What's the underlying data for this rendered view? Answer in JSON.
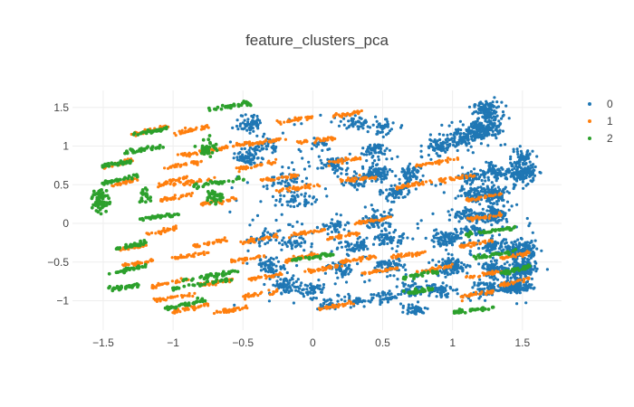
{
  "chart_data": {
    "type": "scatter",
    "title": "feature_clusters_pca",
    "xlabel": "",
    "ylabel": "",
    "xlim": [
      -1.72,
      1.78
    ],
    "ylim": [
      -1.38,
      1.72
    ],
    "x_ticks": [
      -1.5,
      -1,
      -0.5,
      0,
      0.5,
      1,
      1.5
    ],
    "x_tick_labels": [
      "−1.5",
      "−1",
      "−0.5",
      "0",
      "0.5",
      "1",
      "1.5"
    ],
    "y_ticks": [
      -1,
      -0.5,
      0,
      0.5,
      1,
      1.5
    ],
    "y_tick_labels": [
      "−1",
      "−0.5",
      "0",
      "0.5",
      "1",
      "1.5"
    ],
    "grid": true,
    "legend_position": "top-right",
    "series": [
      {
        "name": "0",
        "color": "#1f77b4",
        "marker_size": 1.6,
        "blobs": [
          [
            1.25,
            1.45,
            0.05,
            0.06,
            120
          ],
          [
            1.22,
            1.22,
            0.06,
            0.06,
            160
          ],
          [
            1.05,
            1.1,
            0.06,
            0.06,
            80
          ],
          [
            0.9,
            1.0,
            0.05,
            0.05,
            60
          ],
          [
            1.5,
            0.85,
            0.04,
            0.05,
            60
          ],
          [
            1.5,
            0.65,
            0.05,
            0.06,
            140
          ],
          [
            1.3,
            0.65,
            0.04,
            0.05,
            60
          ],
          [
            1.15,
            0.6,
            0.05,
            0.05,
            60
          ],
          [
            1.3,
            0.38,
            0.05,
            0.05,
            90
          ],
          [
            1.15,
            0.38,
            0.05,
            0.05,
            60
          ],
          [
            1.3,
            0.12,
            0.05,
            0.06,
            120
          ],
          [
            1.1,
            0.1,
            0.05,
            0.05,
            60
          ],
          [
            1.5,
            -0.35,
            0.05,
            0.06,
            140
          ],
          [
            1.3,
            -0.3,
            0.05,
            0.05,
            80
          ],
          [
            1.5,
            -0.6,
            0.05,
            0.06,
            160
          ],
          [
            1.3,
            -0.6,
            0.05,
            0.05,
            80
          ],
          [
            1.45,
            -0.82,
            0.06,
            0.04,
            140
          ],
          [
            1.25,
            -0.85,
            0.05,
            0.05,
            60
          ],
          [
            1.0,
            -0.55,
            0.06,
            0.06,
            90
          ],
          [
            0.95,
            -0.2,
            0.06,
            0.05,
            80
          ],
          [
            0.9,
            -0.85,
            0.05,
            0.05,
            60
          ],
          [
            0.7,
            -0.85,
            0.05,
            0.05,
            50
          ],
          [
            0.72,
            -1.12,
            0.05,
            0.03,
            50
          ],
          [
            0.55,
            -0.55,
            0.05,
            0.05,
            60
          ],
          [
            0.55,
            -0.2,
            0.05,
            0.05,
            60
          ],
          [
            0.45,
            0.05,
            0.05,
            0.05,
            60
          ],
          [
            0.6,
            0.4,
            0.05,
            0.05,
            60
          ],
          [
            0.45,
            0.65,
            0.05,
            0.05,
            90
          ],
          [
            0.7,
            0.65,
            0.04,
            0.05,
            60
          ],
          [
            0.45,
            0.95,
            0.05,
            0.05,
            50
          ],
          [
            0.5,
            1.25,
            0.05,
            0.05,
            40
          ],
          [
            0.3,
            1.3,
            0.06,
            0.05,
            40
          ],
          [
            0.15,
            0.75,
            0.05,
            0.05,
            50
          ],
          [
            0.3,
            0.55,
            0.05,
            0.05,
            40
          ],
          [
            -0.2,
            0.55,
            0.07,
            0.07,
            50
          ],
          [
            -0.1,
            0.3,
            0.06,
            0.05,
            40
          ],
          [
            -0.45,
            0.85,
            0.05,
            0.05,
            60
          ],
          [
            -0.45,
            1.3,
            0.04,
            0.06,
            60
          ],
          [
            -0.35,
            1.0,
            0.05,
            0.05,
            40
          ],
          [
            -0.3,
            -0.55,
            0.05,
            0.05,
            60
          ],
          [
            -0.2,
            -0.8,
            0.05,
            0.06,
            70
          ],
          [
            0.0,
            -0.85,
            0.05,
            0.05,
            50
          ],
          [
            0.2,
            -0.6,
            0.05,
            0.05,
            50
          ],
          [
            0.3,
            -0.3,
            0.06,
            0.05,
            50
          ],
          [
            0.15,
            -0.05,
            0.05,
            0.05,
            40
          ],
          [
            -0.15,
            -0.25,
            0.05,
            0.05,
            40
          ],
          [
            -0.35,
            -0.2,
            0.05,
            0.05,
            30
          ],
          [
            0.1,
            -1.05,
            0.04,
            0.04,
            30
          ],
          [
            0.3,
            -1.0,
            0.05,
            0.04,
            30
          ],
          [
            0.5,
            -0.95,
            0.05,
            0.04,
            40
          ],
          [
            1.15,
            -0.1,
            0.05,
            0.05,
            40
          ],
          [
            0.05,
            1.05,
            0.05,
            0.05,
            20
          ]
        ]
      },
      {
        "name": "1",
        "color": "#ff7f0e",
        "marker_size": 1.6,
        "segments": [
          [
            -1.5,
            0.72,
            -1.3,
            0.82
          ],
          [
            -1.45,
            0.48,
            -1.25,
            0.58
          ],
          [
            -1.1,
            0.5,
            -0.9,
            0.6
          ],
          [
            -1.0,
            0.5,
            -0.7,
            0.58
          ],
          [
            -1.3,
            1.15,
            -1.05,
            1.25
          ],
          [
            -1.0,
            1.15,
            -0.75,
            1.25
          ],
          [
            -0.95,
            0.88,
            -0.7,
            0.95
          ],
          [
            -1.05,
            0.72,
            -0.8,
            0.8
          ],
          [
            -0.7,
            0.95,
            -0.45,
            1.05
          ],
          [
            -0.45,
            1.02,
            -0.2,
            1.1
          ],
          [
            -0.1,
            1.05,
            0.15,
            1.1
          ],
          [
            -0.25,
            1.3,
            0.0,
            1.38
          ],
          [
            0.15,
            1.38,
            0.35,
            1.45
          ],
          [
            -0.55,
            0.7,
            -0.25,
            0.8
          ],
          [
            -0.4,
            0.55,
            -0.1,
            0.62
          ],
          [
            -0.25,
            0.42,
            0.05,
            0.5
          ],
          [
            0.1,
            0.78,
            0.35,
            0.85
          ],
          [
            0.2,
            0.55,
            0.45,
            0.6
          ],
          [
            -1.1,
            0.3,
            -0.85,
            0.38
          ],
          [
            -0.8,
            0.25,
            -0.55,
            0.32
          ],
          [
            -1.2,
            -0.15,
            -0.95,
            -0.05
          ],
          [
            -0.85,
            -0.3,
            -0.6,
            -0.2
          ],
          [
            -0.5,
            -0.25,
            -0.25,
            -0.15
          ],
          [
            -0.15,
            -0.15,
            0.1,
            -0.08
          ],
          [
            0.1,
            -0.2,
            0.35,
            -0.12
          ],
          [
            0.3,
            0.0,
            0.55,
            0.08
          ],
          [
            0.6,
            0.45,
            0.85,
            0.55
          ],
          [
            0.75,
            0.75,
            1.05,
            0.85
          ],
          [
            0.9,
            0.55,
            1.15,
            0.62
          ],
          [
            -1.4,
            -0.35,
            -1.2,
            -0.28
          ],
          [
            -1.35,
            -0.55,
            -1.15,
            -0.48
          ],
          [
            -1.0,
            -0.45,
            -0.75,
            -0.38
          ],
          [
            -0.6,
            -0.5,
            -0.35,
            -0.42
          ],
          [
            -0.2,
            -0.48,
            0.05,
            -0.4
          ],
          [
            0.2,
            -0.5,
            0.45,
            -0.42
          ],
          [
            0.55,
            -0.45,
            0.8,
            -0.38
          ],
          [
            -1.15,
            -0.82,
            -0.9,
            -0.72
          ],
          [
            -0.8,
            -0.8,
            -0.55,
            -0.72
          ],
          [
            -0.45,
            -0.72,
            -0.2,
            -0.65
          ],
          [
            -1.15,
            -1.0,
            -0.85,
            -0.92
          ],
          [
            -1.0,
            -1.15,
            -0.75,
            -1.05
          ],
          [
            -0.7,
            -1.15,
            -0.45,
            -1.08
          ],
          [
            0.05,
            -1.1,
            0.3,
            -1.02
          ],
          [
            -0.05,
            -0.62,
            0.2,
            -0.55
          ],
          [
            0.35,
            -0.65,
            0.6,
            -0.58
          ],
          [
            0.75,
            -0.62,
            1.0,
            -0.55
          ],
          [
            1.05,
            -0.3,
            1.3,
            -0.22
          ],
          [
            1.1,
            -0.7,
            1.35,
            -0.62
          ],
          [
            1.05,
            -0.95,
            1.3,
            -0.88
          ],
          [
            1.35,
            -0.45,
            1.55,
            -0.38
          ],
          [
            1.35,
            -0.8,
            1.55,
            -0.72
          ],
          [
            1.1,
            0.05,
            1.35,
            0.12
          ],
          [
            1.1,
            0.3,
            1.35,
            0.38
          ],
          [
            -0.5,
            -0.95,
            -0.25,
            -0.88
          ]
        ]
      },
      {
        "name": "2",
        "color": "#2ca02c",
        "marker_size": 1.9,
        "segments": [
          [
            -0.75,
            1.48,
            -0.45,
            1.55
          ],
          [
            -1.3,
            1.15,
            -1.05,
            1.22
          ],
          [
            -1.35,
            0.92,
            -1.05,
            1.0
          ],
          [
            -1.5,
            0.75,
            -1.3,
            0.8
          ],
          [
            -1.5,
            0.52,
            -1.25,
            0.62
          ],
          [
            -0.85,
            0.48,
            -0.5,
            0.58
          ],
          [
            -1.25,
            0.05,
            -0.95,
            0.12
          ],
          [
            -1.4,
            -0.32,
            -1.2,
            -0.25
          ],
          [
            -1.45,
            -0.65,
            -1.2,
            -0.55
          ],
          [
            -1.45,
            -0.85,
            -1.25,
            -0.8
          ],
          [
            -1.0,
            -0.85,
            -0.6,
            -0.72
          ],
          [
            -0.95,
            -0.75,
            -0.55,
            -0.62
          ],
          [
            -1.05,
            -1.1,
            -0.75,
            -0.98
          ],
          [
            -0.15,
            -0.48,
            0.15,
            -0.4
          ],
          [
            0.65,
            -0.9,
            0.85,
            -0.85
          ],
          [
            0.65,
            -0.7,
            0.9,
            -0.62
          ],
          [
            1.0,
            -1.15,
            1.3,
            -1.08
          ],
          [
            1.1,
            -0.15,
            1.45,
            -0.05
          ],
          [
            1.15,
            -0.45,
            1.45,
            -0.35
          ],
          [
            1.35,
            -0.65,
            1.55,
            -0.55
          ]
        ],
        "clumps": [
          [
            -1.52,
            0.3,
            0.03,
            0.08,
            60
          ],
          [
            -0.75,
            0.98,
            0.03,
            0.06,
            40
          ],
          [
            -0.7,
            0.35,
            0.03,
            0.05,
            30
          ],
          [
            -1.2,
            0.35,
            0.03,
            0.05,
            20
          ]
        ]
      }
    ]
  }
}
